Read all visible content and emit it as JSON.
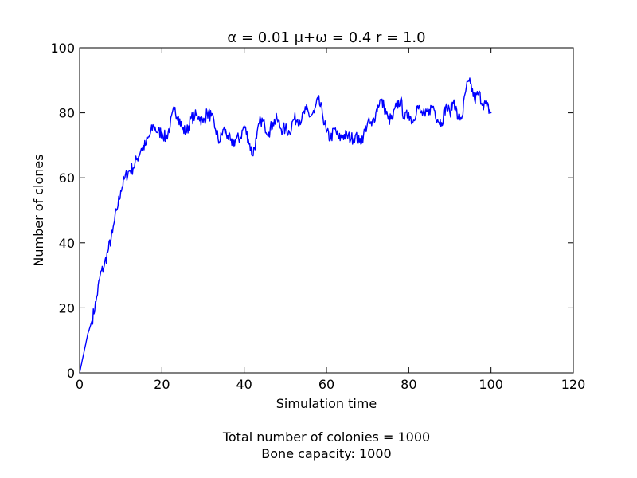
{
  "chart_data": {
    "type": "line",
    "title": "α = 0.01 μ+ω = 0.4 r = 1.0",
    "xlabel": "Simulation time",
    "ylabel": "Number of clones",
    "xlim": [
      0,
      120
    ],
    "ylim": [
      0,
      100
    ],
    "xticks": [
      0,
      20,
      40,
      60,
      80,
      100,
      120
    ],
    "yticks": [
      0,
      20,
      40,
      60,
      80,
      100
    ],
    "grid": false,
    "line_color": "#0000ff",
    "series": [
      {
        "x": [
          0,
          1,
          2,
          3,
          4,
          5,
          6,
          7,
          8,
          9,
          10,
          11,
          12,
          13,
          14,
          15,
          16,
          17,
          18,
          19,
          20,
          21,
          22,
          23,
          24,
          25,
          26,
          27,
          28,
          29,
          30,
          31,
          32,
          33,
          34,
          35,
          36,
          37,
          38,
          39,
          40,
          41,
          42,
          43,
          44,
          45,
          46,
          47,
          48,
          49,
          50,
          51,
          52,
          53,
          54,
          55,
          56,
          57,
          58,
          59,
          60,
          61,
          62,
          63,
          64,
          65,
          66,
          67,
          68,
          69,
          70,
          71,
          72,
          73,
          74,
          75,
          76,
          77,
          78,
          79,
          80,
          81,
          82,
          83,
          84,
          85,
          86,
          87,
          88,
          89,
          90,
          91,
          92,
          93,
          94,
          95,
          96,
          97,
          98,
          99,
          100
        ],
        "y": [
          0,
          6,
          12,
          16,
          22,
          30,
          33,
          38,
          43,
          50,
          56,
          60,
          62,
          63,
          66,
          69,
          70,
          73,
          76,
          74,
          74,
          72,
          76,
          81,
          79,
          75,
          74,
          78,
          79,
          79,
          77,
          80,
          79,
          75,
          71,
          75,
          73,
          70,
          72,
          72,
          76,
          72,
          67,
          72,
          78,
          76,
          74,
          77,
          78,
          75,
          75,
          74,
          78,
          78,
          78,
          81,
          79,
          80,
          84,
          80,
          74,
          72,
          75,
          72,
          73,
          73,
          72,
          73,
          71,
          73,
          77,
          76,
          80,
          84,
          82,
          78,
          78,
          82,
          84,
          78,
          80,
          77,
          82,
          80,
          79,
          81,
          82,
          78,
          77,
          82,
          80,
          84,
          78,
          79,
          88,
          89,
          84,
          86,
          83,
          82,
          80
        ]
      }
    ]
  },
  "notes": {
    "line1": "Total number of colonies = 1000",
    "line2": "Bone capacity: 1000"
  }
}
